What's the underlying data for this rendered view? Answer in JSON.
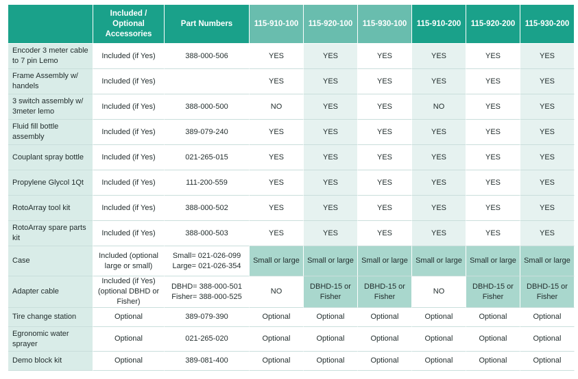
{
  "header": {
    "feature": "",
    "included": "Included / Optional Accessories",
    "part_numbers": "Part Numbers",
    "models": [
      "115-910-100",
      "115-920-100",
      "115-930-100",
      "115-910-200",
      "115-920-200",
      "115-930-200"
    ]
  },
  "rows": [
    {
      "feature": "Encoder 3 meter cable to 7 pin Lemo",
      "included": "Included (if Yes)",
      "part": "388-000-506",
      "values": [
        "YES",
        "YES",
        "YES",
        "YES",
        "YES",
        "YES"
      ]
    },
    {
      "feature": "Frame Assembly w/ handels",
      "included": "Included (if Yes)",
      "part": "",
      "values": [
        "YES",
        "YES",
        "YES",
        "YES",
        "YES",
        "YES"
      ]
    },
    {
      "feature": "3 switch assembly w/ 3meter lemo",
      "included": "Included (if Yes)",
      "part": "388-000-500",
      "values": [
        "NO",
        "YES",
        "YES",
        "NO",
        "YES",
        "YES"
      ]
    },
    {
      "feature": "Fluid fill bottle assembly",
      "included": "Included (if Yes)",
      "part": "389-079-240",
      "values": [
        "YES",
        "YES",
        "YES",
        "YES",
        "YES",
        "YES"
      ]
    },
    {
      "feature": "Couplant spray bottle",
      "included": "Included (if Yes)",
      "part": "021-265-015",
      "values": [
        "YES",
        "YES",
        "YES",
        "YES",
        "YES",
        "YES"
      ]
    },
    {
      "feature": "Propylene Glycol 1Qt",
      "included": "Included (if Yes)",
      "part": "111-200-559",
      "values": [
        "YES",
        "YES",
        "YES",
        "YES",
        "YES",
        "YES"
      ]
    },
    {
      "feature": "RotoArray tool kit",
      "included": "Included (if Yes)",
      "part": "388-000-502",
      "values": [
        "YES",
        "YES",
        "YES",
        "YES",
        "YES",
        "YES"
      ]
    },
    {
      "feature": "RotoArray spare parts kit",
      "included": "Included (if Yes)",
      "part": "388-000-503",
      "values": [
        "YES",
        "YES",
        "YES",
        "YES",
        "YES",
        "YES"
      ]
    },
    {
      "feature": "Case",
      "included": "Included (optional large or small)",
      "part": "Small= 021-026-099 Large= 021-026-354",
      "values": [
        "Small or large",
        "Small or large",
        "Small or large",
        "Small or large",
        "Small or large",
        "Small or large"
      ]
    },
    {
      "feature": "Adapter cable",
      "included": "Included (if Yes) (optional DBHD or Fisher)",
      "part": "DBHD= 388-000-501 Fisher= 388-000-525",
      "values": [
        "NO",
        "DBHD-15 or Fisher",
        "DBHD-15 or Fisher",
        "NO",
        "DBHD-15 or Fisher",
        "DBHD-15 or Fisher"
      ]
    },
    {
      "feature": "Tire change station",
      "included": "Optional",
      "part": "389-079-390",
      "values": [
        "Optional",
        "Optional",
        "Optional",
        "Optional",
        "Optional",
        "Optional"
      ]
    },
    {
      "feature": "Egronomic water sprayer",
      "included": "Optional",
      "part": "021-265-020",
      "values": [
        "Optional",
        "Optional",
        "Optional",
        "Optional",
        "Optional",
        "Optional"
      ]
    },
    {
      "feature": "Demo block kit",
      "included": "Optional",
      "part": "389-081-400",
      "values": [
        "Optional",
        "Optional",
        "Optional",
        "Optional",
        "Optional",
        "Optional"
      ]
    }
  ]
}
